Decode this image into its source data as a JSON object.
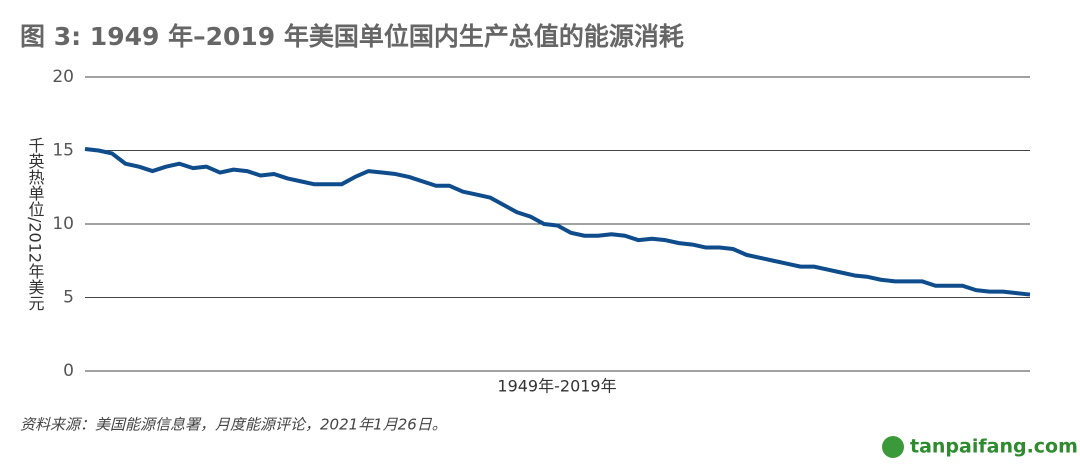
{
  "chart_data": {
    "type": "line",
    "title": "图 3: 1949 年–2019 年美国单位国内生产总值的能源消耗",
    "y_label": "千英热单位/2012年美元",
    "x_label": "1949年-2019年",
    "source": "资料来源：美国能源信息署，月度能源评论，2021年1月26日。",
    "watermark": "tanpaifang.com",
    "series": [
      {
        "name": "能源消耗",
        "color": "#0f4c8c",
        "values": [
          15.1,
          15.0,
          14.8,
          14.1,
          13.9,
          13.6,
          13.9,
          14.1,
          13.8,
          13.9,
          13.5,
          13.7,
          13.6,
          13.3,
          13.4,
          13.1,
          12.9,
          12.7,
          12.7,
          12.7,
          13.2,
          13.6,
          13.5,
          13.4,
          13.2,
          12.9,
          12.6,
          12.6,
          12.2,
          12.0,
          11.8,
          11.3,
          10.8,
          10.5,
          10.0,
          9.9,
          9.4,
          9.2,
          9.2,
          9.3,
          9.2,
          8.9,
          9.0,
          8.9,
          8.7,
          8.6,
          8.4,
          8.4,
          8.3,
          7.9,
          7.7,
          7.5,
          7.3,
          7.1,
          7.1,
          6.9,
          6.7,
          6.5,
          6.4,
          6.2,
          6.1,
          6.1,
          6.1,
          5.8,
          5.8,
          5.8,
          5.5,
          5.4,
          5.4,
          5.3,
          5.2
        ]
      }
    ],
    "ylim": [
      0,
      20
    ],
    "yticks": [
      0,
      5,
      10,
      15,
      20
    ],
    "grid": true
  }
}
